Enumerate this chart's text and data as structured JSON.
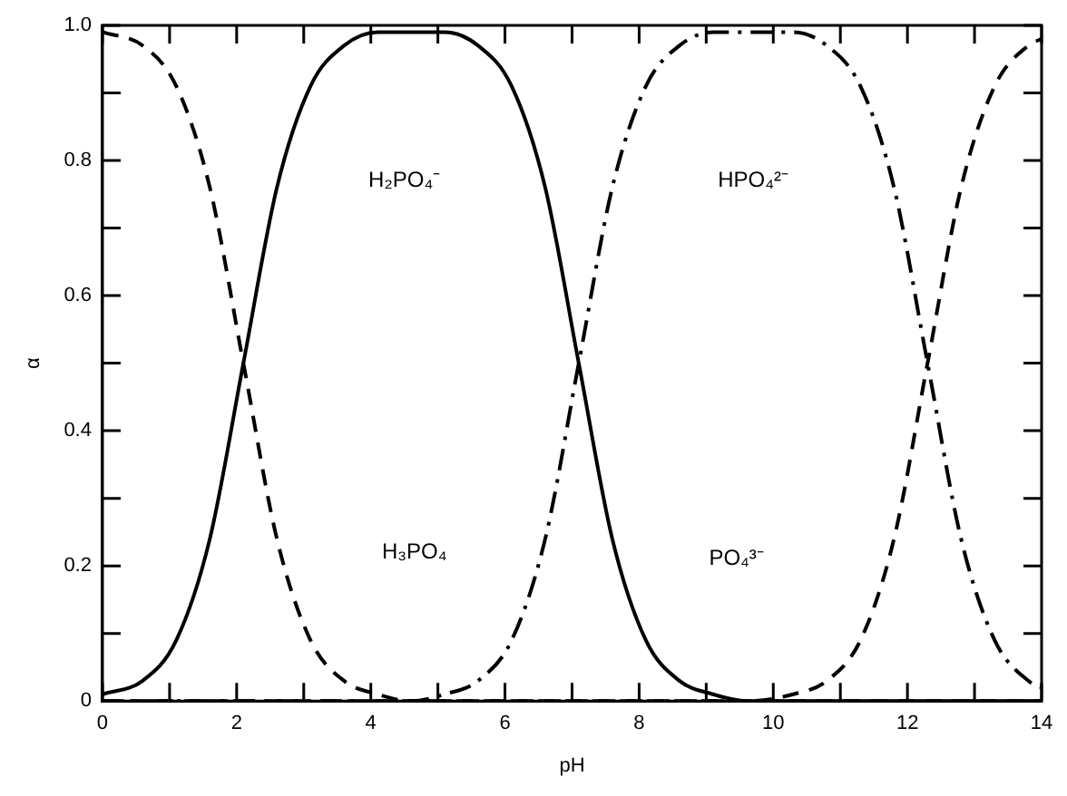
{
  "chart_data": {
    "type": "line",
    "xlabel": "pH",
    "ylabel": "α",
    "xlim": [
      0,
      14
    ],
    "ylim": [
      0,
      1
    ],
    "xticks": [
      0,
      {
        "value": 1,
        "label": null
      },
      2,
      {
        "value": 3,
        "label": null
      },
      4,
      {
        "value": 5,
        "label": null
      },
      6,
      {
        "value": 7,
        "label": null
      },
      8,
      {
        "value": 9,
        "label": null
      },
      10,
      {
        "value": 11,
        "label": null
      },
      12,
      {
        "value": 13,
        "label": null
      },
      14
    ],
    "yticks": [
      0,
      {
        "value": 0.1,
        "label": null
      },
      0.2,
      {
        "value": 0.3,
        "label": null
      },
      0.4,
      {
        "value": 0.5,
        "label": null
      },
      0.6,
      {
        "value": 0.7,
        "label": null
      },
      0.8,
      {
        "value": 0.9,
        "label": null
      },
      {
        "value": 1,
        "label": "1.0"
      }
    ],
    "grid": false,
    "legend": false,
    "marker": "none",
    "x": [
      0,
      0.6,
      1.1,
      1.6,
      2.1,
      2.6,
      3.1,
      3.6,
      4.1,
      4.6,
      5.1,
      5.6,
      6.1,
      6.6,
      7.1,
      7.6,
      8.1,
      8.6,
      9.1,
      9.6,
      10.3,
      10.8,
      11.3,
      11.8,
      12.3,
      12.8,
      13.3,
      13.8,
      14
    ],
    "series": [
      {
        "color": "#000000",
        "line_style": "dashed",
        "values": [
          0.99,
          0.97,
          0.91,
          0.76,
          0.5,
          0.24,
          0.09,
          0.03,
          0.01,
          0,
          0,
          0,
          0,
          0,
          0,
          0,
          0,
          0,
          0,
          0,
          0,
          0,
          0,
          0,
          0,
          0,
          0,
          0,
          0
        ]
      },
      {
        "color": "#000000",
        "line_style": "solid",
        "values": [
          0.01,
          0.03,
          0.09,
          0.24,
          0.5,
          0.76,
          0.91,
          0.97,
          0.99,
          0.99,
          0.99,
          0.97,
          0.91,
          0.76,
          0.5,
          0.24,
          0.09,
          0.03,
          0.01,
          0,
          0,
          0,
          0,
          0,
          0,
          0,
          0,
          0,
          0
        ]
      },
      {
        "color": "#000000",
        "line_style": "dashdot",
        "values": [
          0,
          0,
          0,
          0,
          0,
          0,
          0,
          0,
          0,
          0,
          0.01,
          0.03,
          0.09,
          0.24,
          0.5,
          0.76,
          0.91,
          0.97,
          0.99,
          0.99,
          0.99,
          0.97,
          0.91,
          0.76,
          0.5,
          0.24,
          0.09,
          0.03,
          0.02
        ]
      },
      {
        "color": "#000000",
        "line_style": "dashed",
        "values": [
          0,
          0,
          0,
          0,
          0,
          0,
          0,
          0,
          0,
          0,
          0,
          0,
          0,
          0,
          0,
          0,
          0,
          0,
          0,
          0,
          0.01,
          0.03,
          0.09,
          0.24,
          0.5,
          0.76,
          0.91,
          0.97,
          0.98
        ]
      }
    ],
    "annotations": [
      {
        "text": "H₂PO₄⁻",
        "x": 4.5,
        "y": 0.77
      },
      {
        "text": "HPO₄²⁻",
        "x": 9.7,
        "y": 0.77
      },
      {
        "text": "H₃PO₄",
        "x": 4.65,
        "y": 0.22
      },
      {
        "text": "PO₄³⁻",
        "x": 9.45,
        "y": 0.21
      }
    ]
  }
}
